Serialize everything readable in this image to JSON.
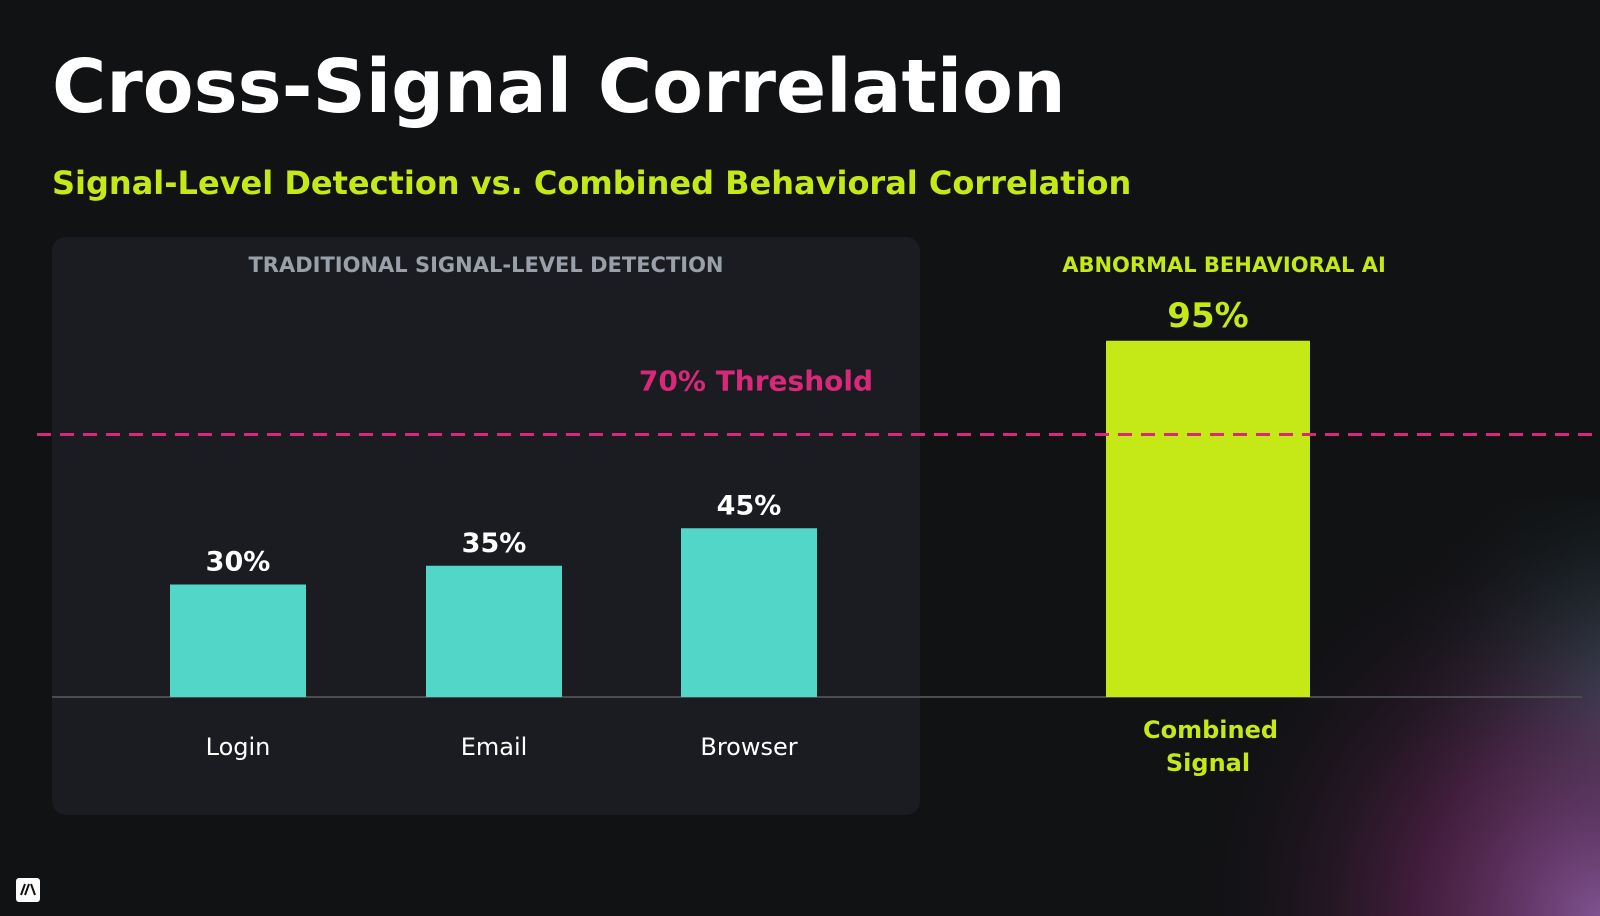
{
  "chart_data": {
    "type": "bar",
    "title": "Cross-Signal Correlation",
    "subtitle": "Signal-Level Detection vs. Combined Behavioral Correlation",
    "ylim": [
      0,
      100
    ],
    "threshold": {
      "value": 70,
      "label": "70% Threshold",
      "color": "#d9287a"
    },
    "groups": [
      {
        "label": "TRADITIONAL SIGNAL-LEVEL DETECTION",
        "label_color": "#9aa0aa",
        "color": "#52d6c8",
        "text_color": "#ffffff",
        "categories": [
          "Login",
          "Email",
          "Browser"
        ],
        "values": [
          30,
          35,
          45
        ],
        "value_labels": [
          "30%",
          "35%",
          "45%"
        ]
      },
      {
        "label": "ABNORMAL BEHAVIORAL AI",
        "label_color": "#c5e817",
        "color": "#c5e817",
        "text_color": "#c5e817",
        "categories": [
          "Combined Signal"
        ],
        "values": [
          95
        ],
        "value_labels": [
          "95%"
        ]
      }
    ]
  }
}
